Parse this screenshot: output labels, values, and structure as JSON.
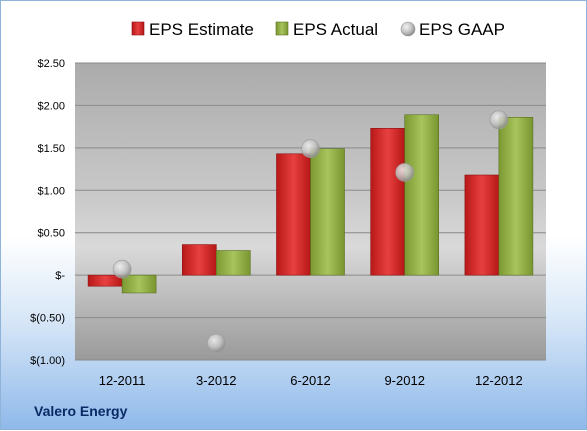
{
  "company": "Valero Energy",
  "colors": {
    "estimate": "#cc2222",
    "actual": "#8aa83c",
    "gaap": "#b8b8b8"
  },
  "chart_data": {
    "type": "bar",
    "categories": [
      "12-2011",
      "3-2012",
      "6-2012",
      "9-2012",
      "12-2012"
    ],
    "series": [
      {
        "name": "EPS Estimate",
        "kind": "bar",
        "values": [
          -0.13,
          0.36,
          1.43,
          1.73,
          1.18
        ]
      },
      {
        "name": "EPS Actual",
        "kind": "bar",
        "values": [
          -0.21,
          0.29,
          1.49,
          1.89,
          1.86
        ]
      },
      {
        "name": "EPS GAAP",
        "kind": "scatter",
        "values": [
          0.07,
          -0.8,
          1.49,
          1.21,
          1.83
        ]
      }
    ],
    "ylim": [
      -1.0,
      2.5
    ],
    "yticks": [
      2.5,
      2.0,
      1.5,
      1.0,
      0.5,
      0.0,
      -0.5,
      -1.0
    ],
    "yticklabels": [
      "$2.50",
      "$2.00",
      "$1.50",
      "$1.00",
      "$0.50",
      "$-",
      "$(0.50)",
      "$(1.00)"
    ],
    "legend": "top",
    "grid": true,
    "title": "",
    "xlabel": "",
    "ylabel": ""
  }
}
